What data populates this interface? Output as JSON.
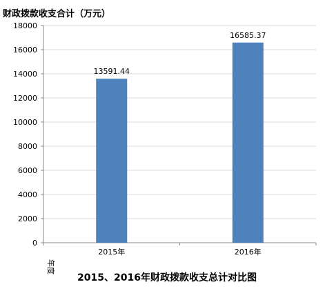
{
  "chart_data": {
    "type": "bar",
    "title": "2015、2016年财政拨款收支总计对比图",
    "ylabel": "财政拨款收支合计（万元）",
    "xlabel": "年度",
    "categories": [
      "2015年",
      "2016年"
    ],
    "series": [
      {
        "values": [
          13591.44,
          16585.37
        ],
        "data_labels": [
          "13591.44",
          "16585.37"
        ],
        "color": "#4f81bd"
      }
    ],
    "ylim": [
      0,
      18000
    ],
    "yticks": [
      {
        "value": 0,
        "label": "0"
      },
      {
        "value": 2000,
        "label": "2000"
      },
      {
        "value": 4000,
        "label": "4000"
      },
      {
        "value": 6000,
        "label": "6000"
      },
      {
        "value": 8000,
        "label": "8000"
      },
      {
        "value": 10000,
        "label": "10000"
      },
      {
        "value": 12000,
        "label": "12000"
      },
      {
        "value": 14000,
        "label": "14000"
      },
      {
        "value": 16000,
        "label": "16000"
      },
      {
        "value": 18000,
        "label": "18000"
      }
    ],
    "grid": true,
    "legend": "none",
    "colors": {
      "bar": "#4f81bd",
      "grid": "#d9d9d9",
      "axis": "#888888",
      "text": "#000000"
    }
  }
}
